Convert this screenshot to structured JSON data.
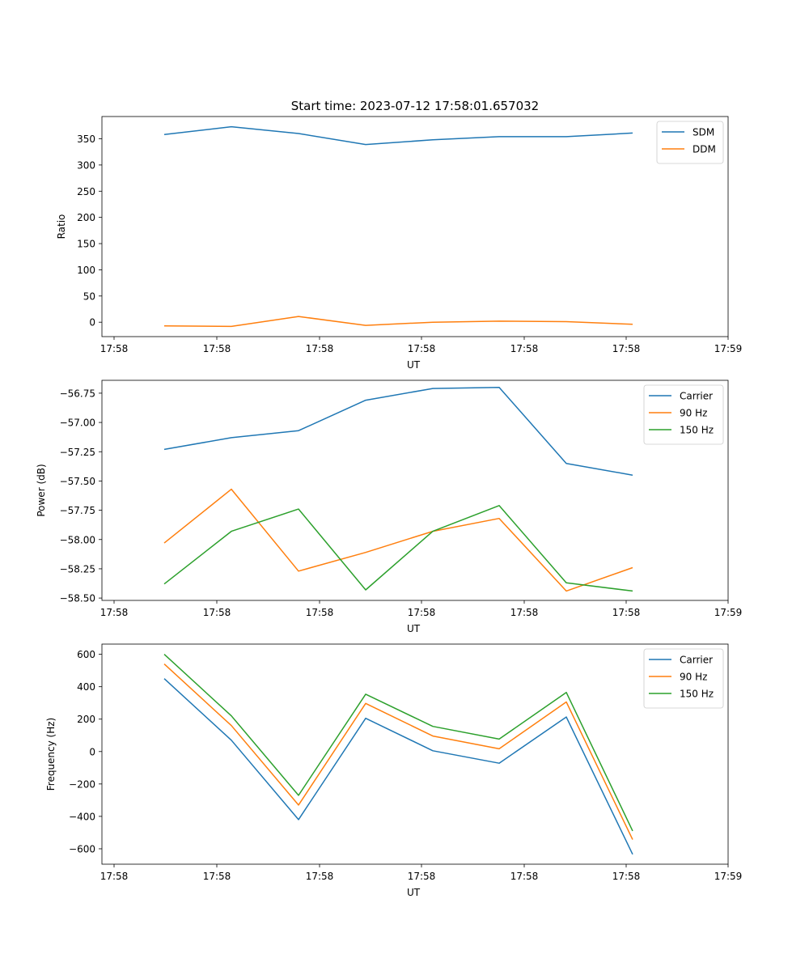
{
  "figure": {
    "suptitle": "Start time: 2023-07-12 17:58:01.657032"
  },
  "colors": {
    "blue": "#1f77b4",
    "orange": "#ff7f0e",
    "green": "#2ca02c"
  },
  "chart_data": [
    {
      "type": "line",
      "title": "Start time: 2023-07-12 17:58:01.657032",
      "xlabel": "UT",
      "ylabel": "Ratio",
      "x_ticks": [
        "17:58",
        "17:58",
        "17:58",
        "17:58",
        "17:58",
        "17:58",
        "17:59"
      ],
      "x_points": 8,
      "ylim": [
        -27.5,
        392.5
      ],
      "y_ticks": [
        0,
        50,
        100,
        150,
        200,
        250,
        300,
        350
      ],
      "legend_position": "top-right",
      "series": [
        {
          "name": "SDM",
          "color": "#1f77b4",
          "values": [
            358,
            373,
            360,
            339,
            348,
            354,
            354,
            361
          ]
        },
        {
          "name": "DDM",
          "color": "#ff7f0e",
          "values": [
            -7,
            -8,
            11,
            -6,
            0,
            2,
            1,
            -4
          ]
        }
      ]
    },
    {
      "type": "line",
      "title": "",
      "xlabel": "UT",
      "ylabel": "Power (dB)",
      "x_ticks": [
        "17:58",
        "17:58",
        "17:58",
        "17:58",
        "17:58",
        "17:58",
        "17:59"
      ],
      "x_points": 8,
      "ylim": [
        -58.52,
        -56.64
      ],
      "y_ticks": [
        -58.5,
        -58.25,
        -58.0,
        -57.75,
        -57.5,
        -57.25,
        -57.0,
        -56.75
      ],
      "y_tick_labels": [
        "−58.50",
        "−58.25",
        "−58.00",
        "−57.75",
        "−57.50",
        "−57.25",
        "−57.00",
        "−56.75"
      ],
      "legend_position": "top-right",
      "series": [
        {
          "name": "Carrier",
          "color": "#1f77b4",
          "values": [
            -57.23,
            -57.13,
            -57.07,
            -56.81,
            -56.71,
            -56.7,
            -57.35,
            -57.45
          ]
        },
        {
          "name": "90 Hz",
          "color": "#ff7f0e",
          "values": [
            -58.03,
            -57.57,
            -58.27,
            -58.11,
            -57.93,
            -57.82,
            -58.44,
            -58.24
          ]
        },
        {
          "name": "150 Hz",
          "color": "#2ca02c",
          "values": [
            -58.38,
            -57.93,
            -57.74,
            -58.43,
            -57.93,
            -57.71,
            -58.37,
            -58.44
          ]
        }
      ]
    },
    {
      "type": "line",
      "title": "",
      "xlabel": "UT",
      "ylabel": "Frequency (Hz)",
      "x_ticks": [
        "17:58",
        "17:58",
        "17:58",
        "17:58",
        "17:58",
        "17:58",
        "17:59"
      ],
      "x_points": 8,
      "ylim": [
        -695,
        663
      ],
      "y_ticks": [
        -600,
        -400,
        -200,
        0,
        200,
        400,
        600
      ],
      "y_tick_labels": [
        "−600",
        "−400",
        "−200",
        "0",
        "200",
        "400",
        "600"
      ],
      "legend_position": "top-right",
      "series": [
        {
          "name": "Carrier",
          "color": "#1f77b4",
          "values": [
            450,
            70,
            -420,
            205,
            5,
            -72,
            213,
            -634
          ]
        },
        {
          "name": "90 Hz",
          "color": "#ff7f0e",
          "values": [
            540,
            160,
            -330,
            297,
            96,
            17,
            306,
            -543
          ]
        },
        {
          "name": "150 Hz",
          "color": "#2ca02c",
          "values": [
            600,
            220,
            -270,
            354,
            155,
            77,
            365,
            -490
          ]
        }
      ]
    }
  ]
}
